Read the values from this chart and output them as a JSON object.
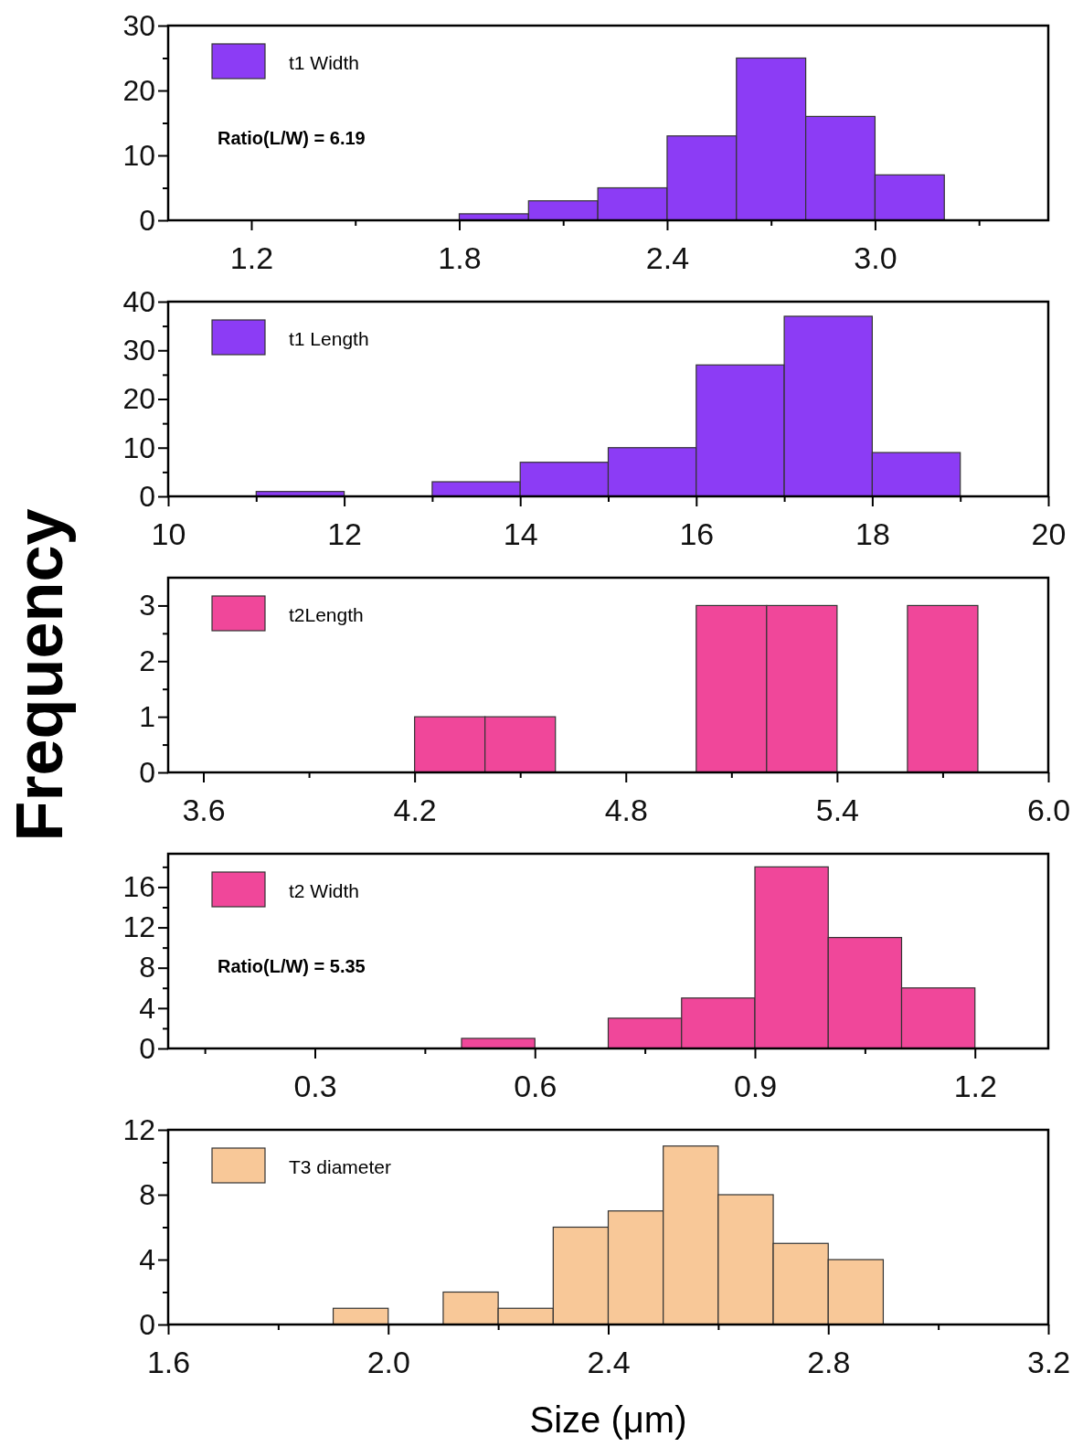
{
  "chart_data": [
    {
      "type": "histogram",
      "bins": [
        1.8,
        2.0,
        2.2,
        2.4,
        2.6,
        2.8,
        3.0,
        3.2
      ],
      "series": [
        {
          "name": "t1 Width",
          "color": "#8c3cf5",
          "values": [
            1,
            3,
            5,
            13,
            25,
            16,
            7
          ]
        }
      ],
      "xlim": [
        0.96,
        3.5
      ],
      "xticks": [
        1.2,
        {
          "value": 1.5,
          "label": null
        },
        1.8,
        {
          "value": 2.1,
          "label": null
        },
        2.4,
        {
          "value": 2.7,
          "label": null
        },
        {
          "value": 3,
          "label": "3.0"
        },
        {
          "value": 3.3,
          "label": null
        }
      ],
      "ylim": [
        0,
        30
      ],
      "yticks": [
        0,
        {
          "value": 5,
          "label": null
        },
        10,
        {
          "value": 15,
          "label": null
        },
        20,
        {
          "value": 25,
          "label": null
        },
        30
      ],
      "legend": "top left",
      "annotations": [
        "Ratio(L/W) = 6.19"
      ]
    },
    {
      "type": "histogram",
      "bins": [
        11,
        12,
        13,
        14,
        15,
        16,
        17,
        18,
        19
      ],
      "series": [
        {
          "name": "t1 Length",
          "color": "#8c3cf5",
          "values": [
            1,
            0,
            3,
            7,
            10,
            27,
            37,
            9
          ]
        }
      ],
      "xlim": [
        10,
        20
      ],
      "xticks": [
        10,
        {
          "value": 11,
          "label": null
        },
        12,
        {
          "value": 13,
          "label": null
        },
        14,
        {
          "value": 15,
          "label": null
        },
        16,
        {
          "value": 17,
          "label": null
        },
        18,
        {
          "value": 19,
          "label": null
        },
        20
      ],
      "ylim": [
        0,
        40
      ],
      "yticks": [
        0,
        {
          "value": 5,
          "label": null
        },
        10,
        {
          "value": 15,
          "label": null
        },
        20,
        {
          "value": 25,
          "label": null
        },
        30,
        {
          "value": 35,
          "label": null
        },
        40
      ],
      "legend": "top left"
    },
    {
      "type": "histogram",
      "bins": [
        4.2,
        4.4,
        4.6,
        4.8,
        5.0,
        5.2,
        5.4,
        5.6,
        5.8
      ],
      "series": [
        {
          "name": "t2Length",
          "color": "#f0479a",
          "values": [
            1,
            1,
            0,
            0,
            3,
            3,
            0,
            3
          ]
        }
      ],
      "xlim": [
        3.5,
        6
      ],
      "xticks": [
        3.6,
        {
          "value": 3.9,
          "label": null
        },
        4.2,
        {
          "value": 4.5,
          "label": null
        },
        4.8,
        {
          "value": 5.1,
          "label": null
        },
        5.4,
        {
          "value": 5.7,
          "label": null
        },
        {
          "value": 6,
          "label": "6.0"
        }
      ],
      "ylim": [
        0,
        3.5
      ],
      "yticks": [
        0,
        {
          "value": 0.5,
          "label": null
        },
        1,
        {
          "value": 1.5,
          "label": null
        },
        2,
        {
          "value": 2.5,
          "label": null
        },
        3
      ],
      "legend": "top left",
      "ylabel": "Frequency"
    },
    {
      "type": "histogram",
      "bins": [
        0.5,
        0.6,
        0.7,
        0.8,
        0.9,
        1.0,
        1.1,
        1.2
      ],
      "series": [
        {
          "name": "t2 Width",
          "color": "#f0479a",
          "values": [
            1,
            0,
            3,
            5,
            18,
            11,
            6
          ]
        }
      ],
      "xlim": [
        0.1,
        1.3
      ],
      "xticks": [
        {
          "value": 0.15,
          "label": null
        },
        0.3,
        {
          "value": 0.45,
          "label": null
        },
        0.6,
        {
          "value": 0.75,
          "label": null
        },
        0.9,
        {
          "value": 1.05,
          "label": null
        },
        1.2
      ],
      "ylim": [
        0,
        19.3
      ],
      "yticks": [
        0,
        {
          "value": 2,
          "label": null
        },
        4,
        {
          "value": 6,
          "label": null
        },
        8,
        {
          "value": 10,
          "label": null
        },
        12,
        {
          "value": 14,
          "label": null
        },
        16,
        {
          "value": 18,
          "label": null
        }
      ],
      "legend": "top left",
      "annotations": [
        "Ratio(L/W) = 5.35"
      ]
    },
    {
      "type": "histogram",
      "bins": [
        1.9,
        2.0,
        2.1,
        2.2,
        2.3,
        2.4,
        2.5,
        2.6,
        2.7,
        2.8,
        2.9
      ],
      "series": [
        {
          "name": "T3 diameter",
          "color": "#f8c898",
          "values": [
            1,
            0,
            2,
            1,
            6,
            7,
            11,
            8,
            5,
            4
          ]
        }
      ],
      "xlim": [
        1.6,
        3.2
      ],
      "xticks": [
        1.6,
        {
          "value": 1.8,
          "label": null
        },
        {
          "value": 2,
          "label": "2.0"
        },
        {
          "value": 2.2,
          "label": null
        },
        2.4,
        {
          "value": 2.6,
          "label": null
        },
        2.8,
        {
          "value": 3,
          "label": null
        },
        3.2
      ],
      "ylim": [
        0,
        12
      ],
      "yticks": [
        0,
        {
          "value": 2,
          "label": null
        },
        4,
        {
          "value": 6,
          "label": null
        },
        8,
        {
          "value": 10,
          "label": null
        },
        12
      ],
      "legend": "top left",
      "xlabel": "Size (μm)"
    }
  ]
}
